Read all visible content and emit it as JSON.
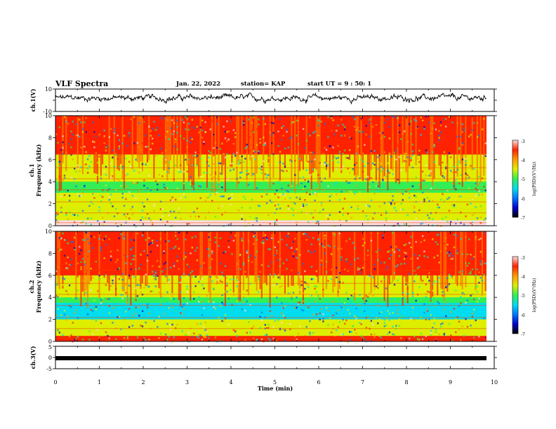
{
  "header": {
    "title": "VLF Spectra",
    "date": "Jan. 22, 2022",
    "station": "station= KAP",
    "start": "start  UT =  9 : 50: 1"
  },
  "chart_data": [
    {
      "type": "line",
      "panel": "waveform-ch1",
      "ylabel": "ch.1(V)",
      "ylim": [
        -10,
        10
      ],
      "yticks": [
        "10",
        "-10"
      ],
      "xlim": [
        0,
        10
      ],
      "series": [
        {
          "values": "noisy oscillation centered near 2 V, amplitude about ±3 V, from t=0 to t≈9.8 min"
        }
      ]
    },
    {
      "type": "heatmap",
      "panel": "spectrogram-ch1",
      "ylabel": "Frequency (kHz)",
      "channel_label": "ch.1",
      "ylim": [
        0,
        10
      ],
      "yticks": [
        "0",
        "2",
        "4",
        "6",
        "8",
        "10"
      ],
      "xlim": [
        0,
        10
      ],
      "colorbar": {
        "label": "log(PSD)(V²/Hz)",
        "range": [
          -7,
          -3
        ],
        "ticks": [
          "-3",
          "-4",
          "-5",
          "-6",
          "-7"
        ]
      },
      "bands_khz": [
        {
          "range": [
            0,
            0.5
          ],
          "level": -3.2
        },
        {
          "range": [
            0.5,
            1.5
          ],
          "level": -4.6
        },
        {
          "range": [
            1.5,
            3
          ],
          "level": -4.9
        },
        {
          "range": [
            3,
            4
          ],
          "level": -5.4
        },
        {
          "range": [
            4,
            5
          ],
          "level": -4.7
        },
        {
          "range": [
            5,
            6.5
          ],
          "level": -5.0
        },
        {
          "range": [
            6.5,
            10
          ],
          "level": -3.7
        }
      ]
    },
    {
      "type": "heatmap",
      "panel": "spectrogram-ch2",
      "ylabel": "Frequency (kHz)",
      "channel_label": "ch.2",
      "ylim": [
        0,
        10
      ],
      "yticks": [
        "0",
        "2",
        "4",
        "6",
        "8",
        "10"
      ],
      "xlim": [
        0,
        10
      ],
      "colorbar": {
        "label": "log(PSD)(V²/Hz)",
        "range": [
          -7,
          -3
        ],
        "ticks": [
          "-3",
          "-4",
          "-5",
          "-6",
          "-7"
        ]
      },
      "bands_khz": [
        {
          "range": [
            0,
            0.5
          ],
          "level": -3.4
        },
        {
          "range": [
            0.5,
            2
          ],
          "level": -4.8
        },
        {
          "range": [
            2,
            3.5
          ],
          "level": -5.9
        },
        {
          "range": [
            3.5,
            4
          ],
          "level": -5.3
        },
        {
          "range": [
            4,
            6
          ],
          "level": -4.6
        },
        {
          "range": [
            6,
            10
          ],
          "level": -3.6
        }
      ]
    },
    {
      "type": "line",
      "panel": "waveform-ch3",
      "ylabel": "ch.3(V)",
      "ylim": [
        -5,
        5
      ],
      "yticks": [
        "5",
        "0",
        "-5"
      ],
      "xlim": [
        0,
        10
      ],
      "xlabel": "Time (min)",
      "xticks": [
        "0",
        "1",
        "2",
        "3",
        "4",
        "5",
        "6",
        "7",
        "8",
        "9",
        "10"
      ],
      "series": [
        {
          "values": "constant square-wave band near 0.5 V, from t=0 to t≈9.8 min"
        }
      ]
    }
  ],
  "colors": {
    "ink": "#000000",
    "background": "#ffffff"
  },
  "colormap": [
    "#000000",
    "#0000cc",
    "#0077ff",
    "#00ddee",
    "#33ee55",
    "#ddee00",
    "#ff9900",
    "#ff2200",
    "#ffdddd"
  ]
}
